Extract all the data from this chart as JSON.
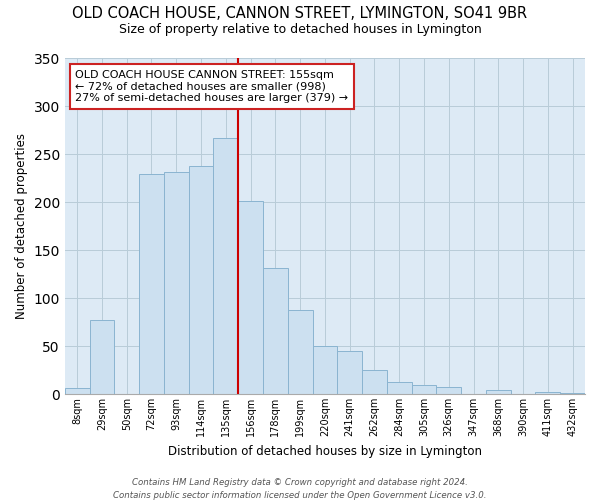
{
  "title": "OLD COACH HOUSE, CANNON STREET, LYMINGTON, SO41 9BR",
  "subtitle": "Size of property relative to detached houses in Lymington",
  "xlabel": "Distribution of detached houses by size in Lymington",
  "ylabel": "Number of detached properties",
  "bar_labels": [
    "8sqm",
    "29sqm",
    "50sqm",
    "72sqm",
    "93sqm",
    "114sqm",
    "135sqm",
    "156sqm",
    "178sqm",
    "199sqm",
    "220sqm",
    "241sqm",
    "262sqm",
    "284sqm",
    "305sqm",
    "326sqm",
    "347sqm",
    "368sqm",
    "390sqm",
    "411sqm",
    "432sqm"
  ],
  "bar_values": [
    6,
    77,
    0,
    229,
    231,
    238,
    267,
    201,
    131,
    87,
    50,
    45,
    25,
    12,
    9,
    7,
    0,
    4,
    0,
    2,
    1
  ],
  "bar_color": "#cce0f0",
  "bar_edge_color": "#8ab4d0",
  "vline_x_index": 7,
  "vline_color": "#cc0000",
  "ylim": [
    0,
    350
  ],
  "yticks": [
    0,
    50,
    100,
    150,
    200,
    250,
    300,
    350
  ],
  "annotation_title": "OLD COACH HOUSE CANNON STREET: 155sqm",
  "annotation_line1": "← 72% of detached houses are smaller (998)",
  "annotation_line2": "27% of semi-detached houses are larger (379) →",
  "footer_line1": "Contains HM Land Registry data © Crown copyright and database right 2024.",
  "footer_line2": "Contains public sector information licensed under the Open Government Licence v3.0.",
  "plot_bg_color": "#ddeaf5",
  "grid_color": "#b8ccd8"
}
